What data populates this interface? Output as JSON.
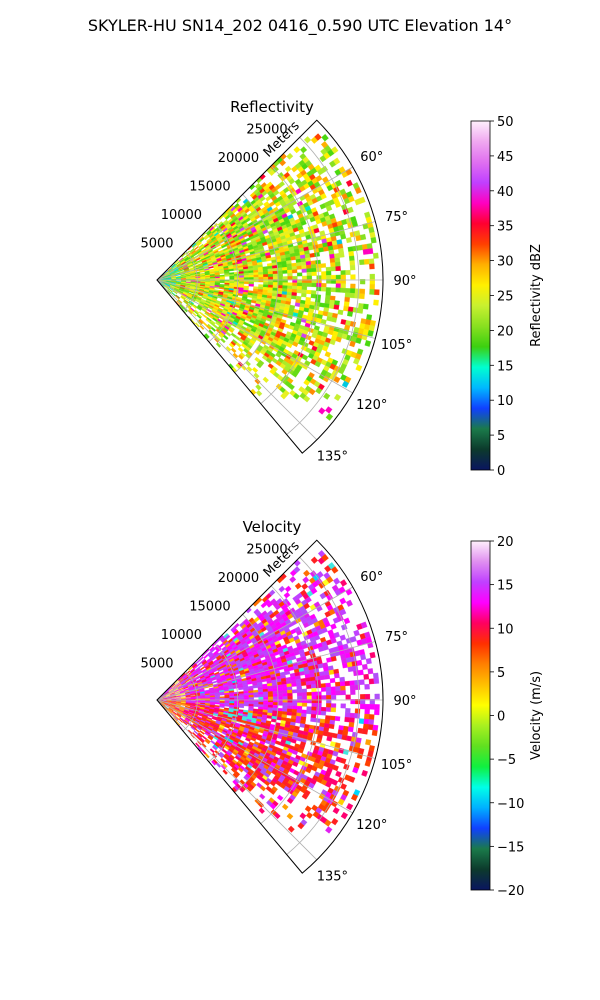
{
  "figure": {
    "title": "SKYLER-HU  SN14_202  0416_0.590 UTC Elevation 14°"
  },
  "chart_data": [
    {
      "type": "heatmap",
      "projection": "polar sector",
      "title": "Reflectivity",
      "radial_axis_label": "Meters",
      "radial_ticks": [
        "5000",
        "10000",
        "15000",
        "20000",
        "25000"
      ],
      "radial_tick_values": [
        5000,
        10000,
        15000,
        20000,
        25000
      ],
      "radial_max": 28000,
      "azimuth_ticks": [
        "60°",
        "75°",
        "90°",
        "105°",
        "120°",
        "135°"
      ],
      "azimuth_tick_values": [
        60,
        75,
        90,
        105,
        120,
        135
      ],
      "azimuth_range": [
        45,
        140
      ],
      "grid": true,
      "colorbar": {
        "label": "Reflectivity dBZ",
        "range": [
          0,
          50
        ],
        "ticks": [
          "0",
          "5",
          "10",
          "15",
          "20",
          "25",
          "30",
          "35",
          "40",
          "45",
          "50"
        ],
        "stops": [
          "#0a1560",
          "#0c3a2c",
          "#1a7a4a",
          "#1040ff",
          "#00b8ff",
          "#00ffd0",
          "#3cd010",
          "#88e020",
          "#c8f030",
          "#fff000",
          "#ffb000",
          "#ff4000",
          "#ff0030",
          "#ff00c0",
          "#c040ff",
          "#e070f0",
          "#f0a8f0",
          "#fff0fc"
        ]
      },
      "field_palette": [
        "#4ad810",
        "#66dc14",
        "#88e020",
        "#aaec28",
        "#c8f030",
        "#e8f020",
        "#fff000",
        "#ffd400",
        "#ffb000",
        "#ff8a00",
        "#ff4000",
        "#ff0030",
        "#ff00c0",
        "#d040f0",
        "#00e8c8",
        "#00c8e0"
      ],
      "field_weights": [
        8,
        9,
        9,
        8,
        8,
        7,
        8,
        6,
        6,
        4,
        3,
        2,
        2,
        1,
        0.6,
        0.4
      ]
    },
    {
      "type": "heatmap",
      "projection": "polar sector",
      "title": "Velocity",
      "radial_axis_label": "Meters",
      "radial_ticks": [
        "5000",
        "10000",
        "15000",
        "20000",
        "25000"
      ],
      "radial_tick_values": [
        5000,
        10000,
        15000,
        20000,
        25000
      ],
      "radial_max": 28000,
      "azimuth_ticks": [
        "60°",
        "75°",
        "90°",
        "105°",
        "120°",
        "135°"
      ],
      "azimuth_tick_values": [
        60,
        75,
        90,
        105,
        120,
        135
      ],
      "azimuth_range": [
        45,
        140
      ],
      "grid": true,
      "colorbar": {
        "label": "Velocity (m/s)",
        "range": [
          -20,
          20
        ],
        "ticks": [
          "−20",
          "−15",
          "−10",
          "−5",
          "0",
          "5",
          "10",
          "15",
          "20"
        ],
        "stops": [
          "#0a1560",
          "#0c3a2c",
          "#1a7a4a",
          "#1040ff",
          "#00b0ff",
          "#00ffe8",
          "#10f040",
          "#60e020",
          "#a8f020",
          "#ffff00",
          "#ffc000",
          "#ff8000",
          "#ff3000",
          "#ff0060",
          "#ff00ff",
          "#c040ff",
          "#e090f0",
          "#fff0fc"
        ]
      },
      "field_palette": [
        "#ff00ff",
        "#e020f0",
        "#c040ff",
        "#b050f8",
        "#ff0070",
        "#ff2020",
        "#ff4000",
        "#ff7000",
        "#ffa000",
        "#ffd000",
        "#ffff20",
        "#40e8e0",
        "#00d8ff"
      ],
      "field_weights": [
        7,
        6,
        6,
        4,
        4,
        6,
        5,
        3,
        2,
        2,
        1,
        1.2,
        0.6
      ]
    }
  ]
}
